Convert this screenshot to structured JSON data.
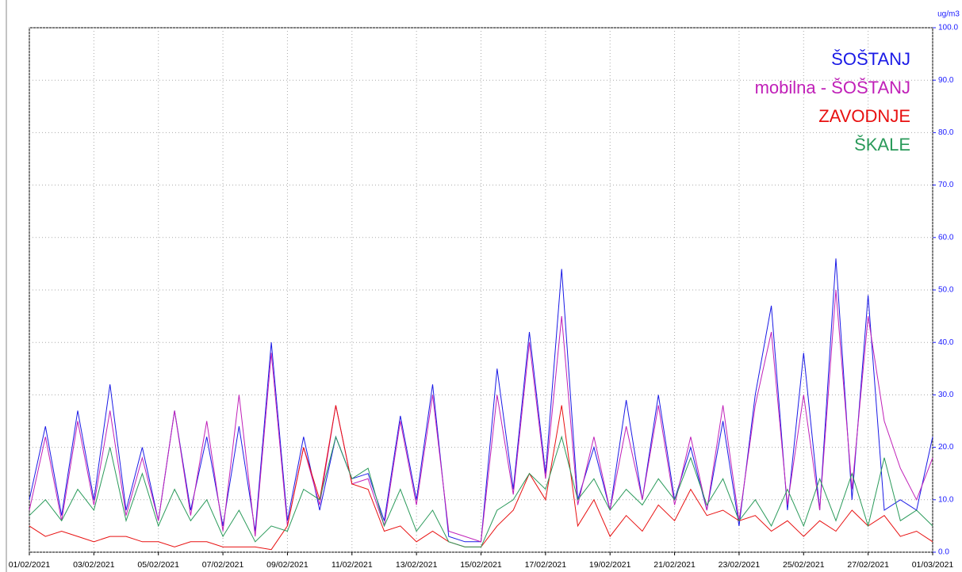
{
  "chart_data": {
    "type": "line",
    "y_label": "ug/m3",
    "x": [
      0,
      0.5,
      1,
      1.5,
      2,
      2.5,
      3,
      3.5,
      4,
      4.5,
      5,
      5.5,
      6,
      6.5,
      7,
      7.5,
      8,
      8.5,
      9,
      9.5,
      10,
      10.5,
      11,
      11.5,
      12,
      12.5,
      13,
      13.5,
      14,
      14.5,
      15,
      15.5,
      16,
      16.5,
      17,
      17.5,
      18,
      18.5,
      19,
      19.5,
      20,
      20.5,
      21,
      21.5,
      22,
      22.5,
      23,
      23.5,
      24,
      24.5,
      25,
      25.5,
      26,
      26.5,
      27,
      27.5,
      28
    ],
    "series": [
      {
        "name": "ŠOŠTANJ",
        "color": "#1a1ae6",
        "values": [
          10,
          24,
          7,
          27,
          10,
          32,
          8,
          20,
          6,
          27,
          8,
          22,
          5,
          24,
          4,
          40,
          6,
          22,
          8,
          22,
          14,
          15,
          6,
          26,
          10,
          32,
          3,
          2,
          2,
          35,
          12,
          42,
          15,
          54,
          10,
          20,
          8,
          29,
          10,
          30,
          10,
          20,
          8,
          25,
          5,
          30,
          47,
          8,
          38,
          8,
          56,
          10,
          49,
          8,
          10,
          8,
          22
        ]
      },
      {
        "name": "mobilna - ŠOŠTANJ",
        "color": "#c020b8",
        "values": [
          8,
          22,
          6,
          25,
          9,
          27,
          7,
          18,
          6,
          27,
          7,
          25,
          4,
          30,
          3,
          38,
          5,
          20,
          9,
          28,
          13,
          14,
          5,
          25,
          9,
          30,
          4,
          3,
          2,
          30,
          11,
          40,
          14,
          45,
          9,
          22,
          8,
          24,
          10,
          28,
          9,
          22,
          8,
          28,
          6,
          28,
          42,
          9,
          30,
          8,
          50,
          12,
          45,
          25,
          16,
          10,
          18
        ]
      },
      {
        "name": "ZAVODNJE",
        "color": "#e81010",
        "values": [
          5,
          3,
          4,
          3,
          2,
          3,
          3,
          2,
          2,
          1,
          2,
          2,
          1,
          1,
          1,
          0.5,
          5,
          20,
          10,
          28,
          13,
          12,
          4,
          5,
          2,
          4,
          2,
          1,
          1,
          5,
          8,
          15,
          10,
          28,
          5,
          10,
          3,
          7,
          4,
          9,
          6,
          12,
          7,
          8,
          6,
          7,
          4,
          6,
          3,
          6,
          4,
          8,
          5,
          7,
          3,
          4,
          2
        ]
      },
      {
        "name": "ŠKALE",
        "color": "#2a9a5a",
        "values": [
          7,
          10,
          6,
          12,
          8,
          20,
          6,
          15,
          5,
          12,
          6,
          10,
          3,
          8,
          2,
          5,
          4,
          12,
          10,
          22,
          14,
          16,
          5,
          12,
          4,
          8,
          2,
          1,
          1,
          8,
          10,
          15,
          12,
          22,
          10,
          14,
          8,
          12,
          9,
          14,
          10,
          18,
          9,
          14,
          6,
          10,
          5,
          12,
          5,
          14,
          6,
          15,
          5,
          18,
          6,
          8,
          5
        ]
      }
    ],
    "xlim": [
      0,
      28
    ],
    "xticks": [
      {
        "value": 0,
        "label": "01/02/2021"
      },
      {
        "value": 2,
        "label": "03/02/2021"
      },
      {
        "value": 4,
        "label": "05/02/2021"
      },
      {
        "value": 6,
        "label": "07/02/2021"
      },
      {
        "value": 8,
        "label": "09/02/2021"
      },
      {
        "value": 10,
        "label": "11/02/2021"
      },
      {
        "value": 12,
        "label": "13/02/2021"
      },
      {
        "value": 14,
        "label": "15/02/2021"
      },
      {
        "value": 16,
        "label": "17/02/2021"
      },
      {
        "value": 18,
        "label": "19/02/2021"
      },
      {
        "value": 20,
        "label": "21/02/2021"
      },
      {
        "value": 22,
        "label": "23/02/2021"
      },
      {
        "value": 24,
        "label": "25/02/2021"
      },
      {
        "value": 26,
        "label": "27/02/2021"
      },
      {
        "value": 28,
        "label": "01/03/2021"
      }
    ],
    "ylim": [
      0,
      100
    ],
    "yticks": [
      {
        "value": 0,
        "label": "0.0"
      },
      {
        "value": 10,
        "label": "10.0"
      },
      {
        "value": 20,
        "label": "20.0"
      },
      {
        "value": 30,
        "label": "30.0"
      },
      {
        "value": 40,
        "label": "40.0"
      },
      {
        "value": 50,
        "label": "50.0"
      },
      {
        "value": 60,
        "label": "60.0"
      },
      {
        "value": 70,
        "label": "70.0"
      },
      {
        "value": 80,
        "label": "80.0"
      },
      {
        "value": 90,
        "label": "90.0"
      },
      {
        "value": 100,
        "label": "100.0"
      }
    ],
    "y_axis_side": "right",
    "grid": true,
    "legend": "top-right"
  }
}
